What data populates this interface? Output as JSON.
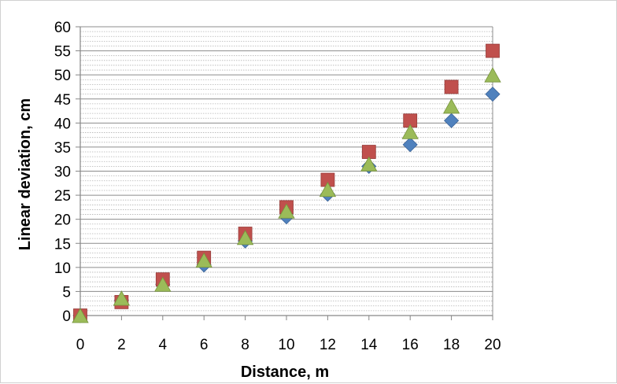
{
  "chart_data": {
    "type": "scatter",
    "title": "",
    "xlabel": "Distance, m",
    "ylabel": "Linear deviation, cm",
    "xlim": [
      0,
      20
    ],
    "ylim": [
      0,
      60
    ],
    "x_ticks": [
      0,
      2,
      4,
      6,
      8,
      10,
      12,
      14,
      16,
      18,
      20
    ],
    "y_ticks": [
      0,
      5,
      10,
      15,
      20,
      25,
      30,
      35,
      40,
      45,
      50,
      55,
      60
    ],
    "x_tick_labels": [
      "0",
      "2",
      "4",
      "6",
      "8",
      "10",
      "12",
      "14",
      "16",
      "18",
      "20"
    ],
    "y_tick_labels": [
      "0",
      "5",
      "10",
      "15",
      "20",
      "25",
      "30",
      "35",
      "40",
      "45",
      "50",
      "55",
      "60"
    ],
    "grid": true,
    "legend": "none",
    "x": [
      0,
      2,
      4,
      6,
      8,
      10,
      12,
      14,
      16,
      18,
      20
    ],
    "series": [
      {
        "marker": "diamond",
        "color": "#4F81BD",
        "values": [
          0,
          3.2,
          6.5,
          10.5,
          15.5,
          20.5,
          25.2,
          31.0,
          35.5,
          40.5,
          46.0
        ]
      },
      {
        "marker": "square",
        "color": "#C0504D",
        "values": [
          0,
          2.8,
          7.5,
          12.0,
          17.0,
          22.5,
          28.2,
          34.0,
          40.5,
          47.5,
          55.0
        ]
      },
      {
        "marker": "triangle",
        "color": "#9BBB59",
        "values": [
          0,
          3.6,
          6.5,
          11.5,
          16.2,
          21.7,
          26.2,
          31.5,
          38.2,
          43.5,
          50.0
        ]
      }
    ]
  }
}
